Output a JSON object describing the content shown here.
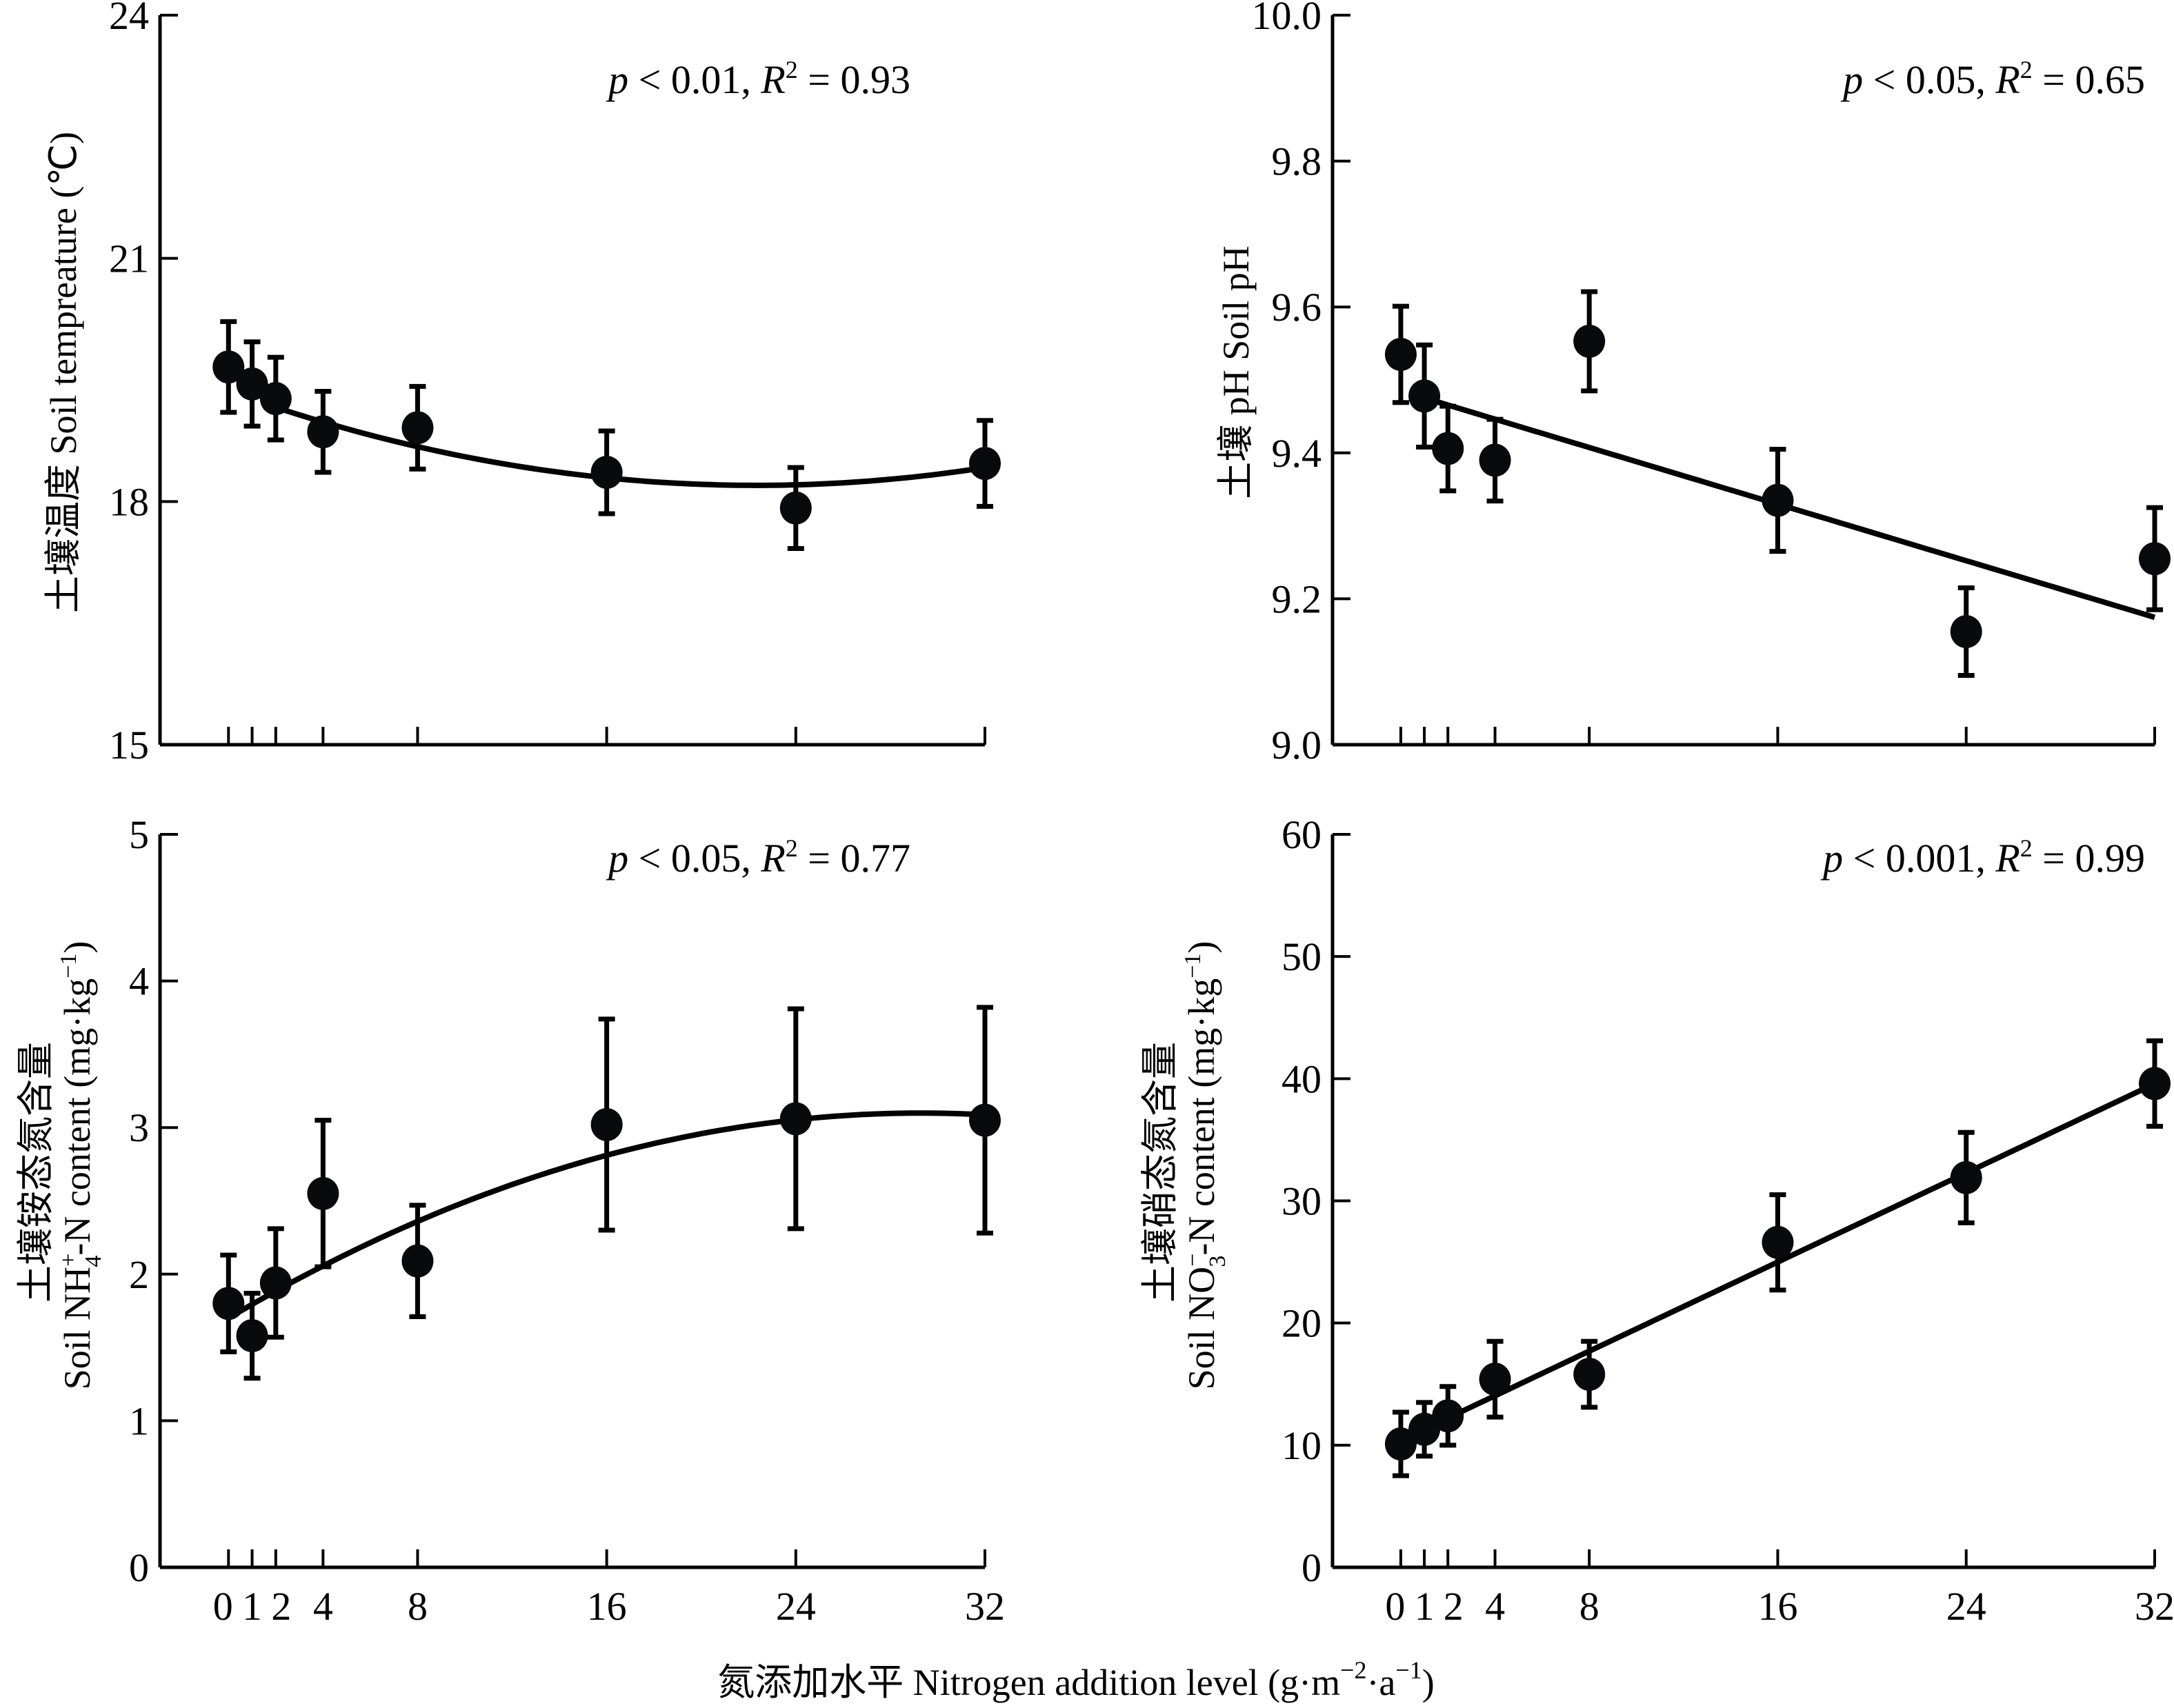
{
  "chart_data": [
    {
      "type": "scatter",
      "panel": "top-left",
      "ylabel_cn": "土壤温度",
      "ylabel_en": "Soil tempreature (℃)",
      "ylim": [
        15,
        24
      ],
      "yticks": [
        15,
        18,
        21,
        24
      ],
      "xticks": [
        0,
        1,
        2,
        4,
        8,
        16,
        24,
        32
      ],
      "xlim": [
        -3,
        32
      ],
      "annotation": {
        "p": "p",
        "p_text": " < 0.01, ",
        "R": "R",
        "R_sup": "2",
        "R_text": " = 0.93"
      },
      "x": [
        0,
        1,
        2,
        4,
        8,
        16,
        24,
        32
      ],
      "y": [
        19.66,
        19.45,
        19.27,
        18.86,
        18.91,
        18.36,
        17.92,
        18.47
      ],
      "err": [
        0.56,
        0.52,
        0.51,
        0.5,
        0.51,
        0.51,
        0.5,
        0.53
      ],
      "fit": {
        "kind": "quadratic",
        "x_range": [
          2,
          32
        ],
        "coef": [
          19.36,
          -0.104,
          0.00233
        ]
      }
    },
    {
      "type": "scatter",
      "panel": "top-right",
      "ylabel_cn": "土壤",
      "ylabel_en": "pH Soil pH",
      "ylim": [
        9.0,
        10.0
      ],
      "yticks": [
        9.0,
        9.2,
        9.4,
        9.6,
        9.8,
        10.0
      ],
      "ytick_labels": [
        "9.0",
        "9.2",
        "9.4",
        "9.6",
        "9.8",
        "10.0"
      ],
      "xticks": [
        0,
        1,
        2,
        4,
        8,
        16,
        24,
        32
      ],
      "xlim": [
        -3,
        32
      ],
      "annotation": {
        "p": "p",
        "p_text": " < 0.05, ",
        "R": "R",
        "R_sup": "2",
        "R_text": " = 0.65"
      },
      "x": [
        0,
        1,
        2,
        4,
        8,
        16,
        24,
        32
      ],
      "y": [
        9.535,
        9.478,
        9.406,
        9.39,
        9.553,
        9.335,
        9.155,
        9.255
      ],
      "err": [
        0.066,
        0.07,
        0.058,
        0.056,
        0.068,
        0.07,
        0.06,
        0.07
      ],
      "fit": {
        "kind": "linear",
        "x_range": [
          1,
          32
        ],
        "coef": [
          9.485,
          -0.0097
        ]
      }
    },
    {
      "type": "scatter",
      "panel": "bottom-left",
      "ylabel_cn": "土壤铵态氮含量",
      "ylabel_en_pre": "Soil NH",
      "ylabel_en_sup": "+",
      "ylabel_en_sub": "4",
      "ylabel_en_post": "-N content (mg·kg",
      "ylabel_en_unit_sup": "−1",
      "ylabel_en_close": ")",
      "ylim": [
        0,
        5
      ],
      "yticks": [
        0,
        1,
        2,
        3,
        4,
        5
      ],
      "xticks": [
        0,
        1,
        2,
        4,
        8,
        16,
        24,
        32
      ],
      "xtick_labels": [
        "0",
        "1",
        "2",
        "4",
        "8",
        "16",
        "24",
        "32"
      ],
      "xlim": [
        -3,
        32
      ],
      "annotation": {
        "p": "p",
        "p_text": " < 0.05, ",
        "R": "R",
        "R_sup": "2",
        "R_text": " = 0.77"
      },
      "x": [
        0,
        1,
        2,
        4,
        8,
        16,
        24,
        32
      ],
      "y": [
        1.8,
        1.58,
        1.94,
        2.55,
        2.09,
        3.02,
        3.06,
        3.05
      ],
      "err": [
        0.33,
        0.29,
        0.37,
        0.5,
        0.38,
        0.72,
        0.75,
        0.77
      ],
      "fit": {
        "kind": "quadratic",
        "x_range": [
          0,
          32
        ],
        "coef": [
          1.7,
          0.0955,
          -0.00163
        ]
      }
    },
    {
      "type": "scatter",
      "panel": "bottom-right",
      "ylabel_cn": "土壤硝态氮含量",
      "ylabel_en_pre": "Soil NO",
      "ylabel_en_sup": "−",
      "ylabel_en_sub": "3",
      "ylabel_en_post": "-N content (mg·kg",
      "ylabel_en_unit_sup": "−1",
      "ylabel_en_close": ")",
      "ylim": [
        0,
        60
      ],
      "yticks": [
        0,
        10,
        20,
        30,
        40,
        50,
        60
      ],
      "xticks": [
        0,
        1,
        2,
        4,
        8,
        16,
        24,
        32
      ],
      "xtick_labels": [
        "0",
        "1",
        "2",
        "4",
        "8",
        "16",
        "24",
        "32"
      ],
      "xlim": [
        -3,
        32
      ],
      "annotation": {
        "p": "p",
        "p_text": " < 0.001, ",
        "R": "R",
        "R_sup": "2",
        "R_text": " = 0.99"
      },
      "x": [
        0,
        1,
        2,
        4,
        8,
        16,
        24,
        32
      ],
      "y": [
        10.1,
        11.3,
        12.4,
        15.4,
        15.8,
        26.6,
        31.9,
        39.6
      ],
      "err": [
        2.6,
        2.2,
        2.4,
        3.1,
        2.7,
        3.9,
        3.7,
        3.5
      ],
      "fit": {
        "kind": "linear",
        "x_range": [
          0,
          32
        ],
        "coef": [
          10.4,
          0.912
        ]
      }
    }
  ],
  "xlabel_cn": "氮添加水平",
  "xlabel_en_pre": "Nitrogen addition level (g·m",
  "xlabel_en_sup1": "−2",
  "xlabel_en_mid": "·a",
  "xlabel_en_sup2": "−1",
  "xlabel_en_close": ")"
}
